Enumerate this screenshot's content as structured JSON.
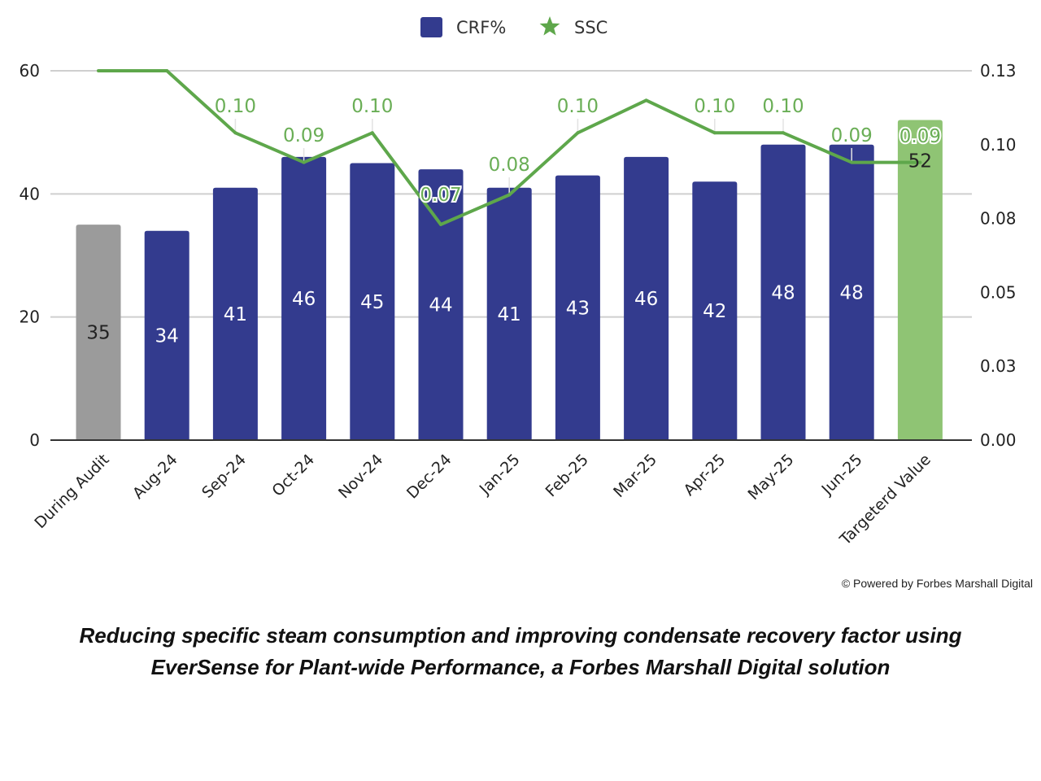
{
  "chart_data": {
    "type": "bar",
    "title": "",
    "legend": {
      "position": "top-center",
      "entries": [
        {
          "name": "CRF%",
          "marker": "square",
          "color": "#333b8e"
        },
        {
          "name": "SSC",
          "marker": "star",
          "color": "#5ea74b"
        }
      ]
    },
    "categories": [
      "During Audit",
      "Aug-24",
      "Sep-24",
      "Oct-24",
      "Nov-24",
      "Dec-24",
      "Jan-25",
      "Feb-25",
      "Mar-25",
      "Apr-25",
      "May-25",
      "Jun-25",
      "Targeterd Value"
    ],
    "series": [
      {
        "name": "CRF%",
        "type": "bar",
        "axis": "left",
        "values": [
          35,
          34,
          41,
          46,
          45,
          44,
          41,
          43,
          46,
          42,
          48,
          48,
          52
        ],
        "data_labels": [
          "35",
          "34",
          "41",
          "46",
          "45",
          "44",
          "41",
          "43",
          "46",
          "42",
          "48",
          "48",
          "52"
        ],
        "bar_colors": [
          "#9b9b9b",
          "#333b8e",
          "#333b8e",
          "#333b8e",
          "#333b8e",
          "#333b8e",
          "#333b8e",
          "#333b8e",
          "#333b8e",
          "#333b8e",
          "#333b8e",
          "#333b8e",
          "#8fc474"
        ],
        "label_colors": [
          "#222222",
          "#ffffff",
          "#ffffff",
          "#ffffff",
          "#ffffff",
          "#ffffff",
          "#ffffff",
          "#ffffff",
          "#ffffff",
          "#ffffff",
          "#ffffff",
          "#ffffff",
          "#222222"
        ]
      },
      {
        "name": "SSC",
        "type": "line",
        "axis": "right",
        "color": "#5ea74b",
        "values": [
          0.125,
          0.125,
          0.104,
          0.094,
          0.104,
          0.073,
          0.083,
          0.104,
          0.115,
          0.104,
          0.104,
          0.094,
          0.094
        ],
        "data_labels": [
          "",
          "",
          "0.10",
          "0.09",
          "0.10",
          "0.07",
          "0.08",
          "0.10",
          "",
          "0.10",
          "0.10",
          "0.09",
          "0.09"
        ]
      }
    ],
    "y_left": {
      "label": "",
      "range": [
        0,
        60
      ],
      "ticks": [
        "0",
        "20",
        "40",
        "60"
      ],
      "tick_values": [
        0,
        20,
        40,
        60
      ]
    },
    "y_right": {
      "label": "",
      "range": [
        0,
        0.125
      ],
      "ticks": [
        "0.00",
        "0.03",
        "0.05",
        "0.08",
        "0.10",
        "0.13"
      ],
      "tick_values": [
        0,
        0.025,
        0.05,
        0.075,
        0.1,
        0.125
      ]
    },
    "xlabel": "",
    "grid": true
  },
  "credit": "© Powered by Forbes Marshall Digital",
  "caption": {
    "line1": "Reducing specific steam consumption and improving condensate recovery factor using",
    "line2": "EverSense for Plant-wide Performance, a Forbes Marshall Digital solution"
  }
}
